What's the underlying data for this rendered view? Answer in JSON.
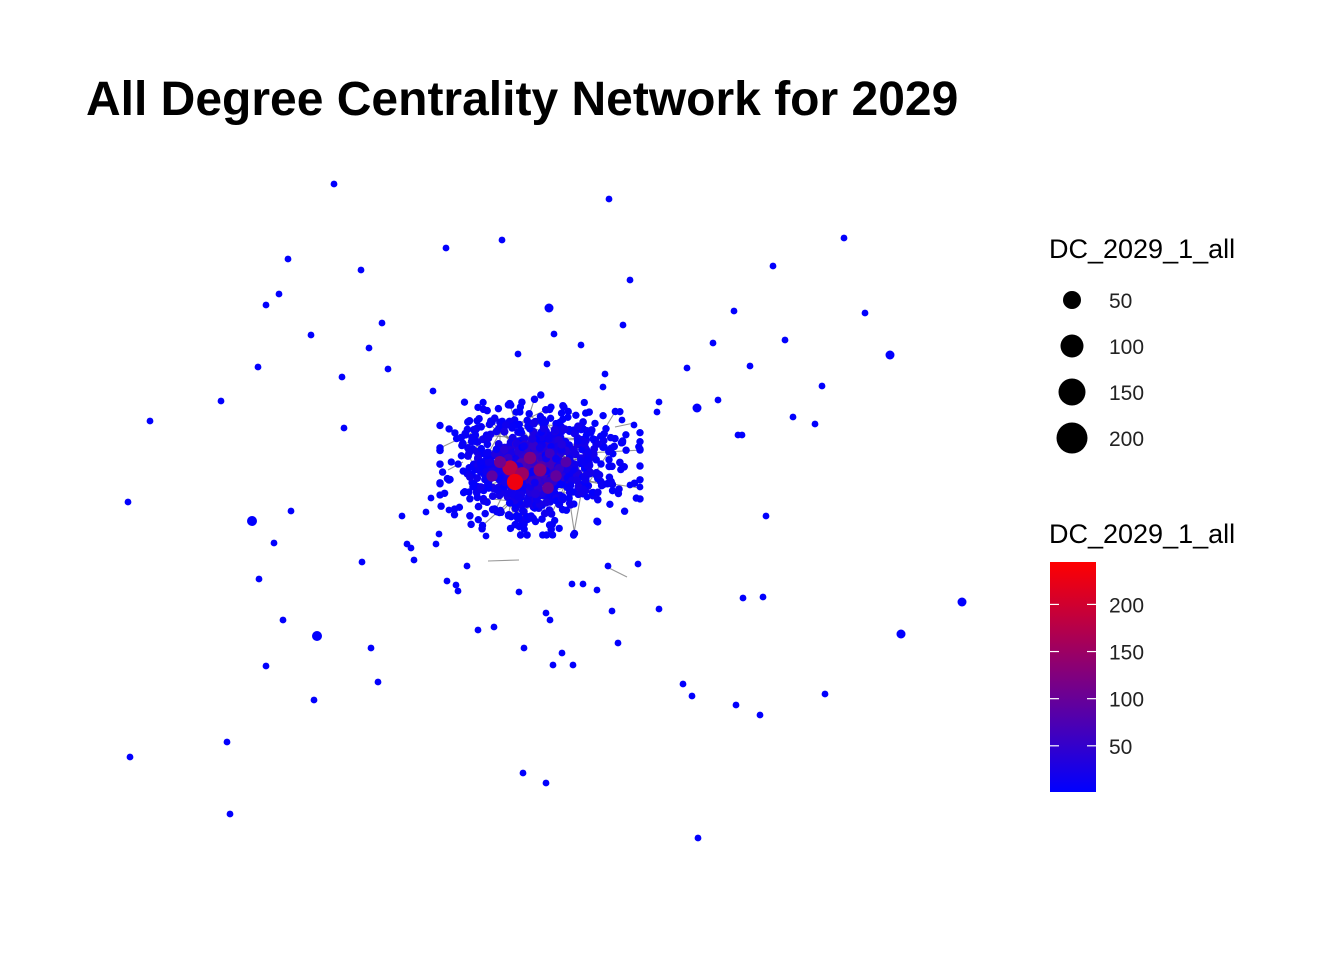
{
  "title": "All Degree Centrality Network for 2029",
  "legend": {
    "size": {
      "title": "DC_2029_1_all",
      "entries": [
        {
          "label": "50",
          "value": 50
        },
        {
          "label": "100",
          "value": 100
        },
        {
          "label": "150",
          "value": 150
        },
        {
          "label": "200",
          "value": 200
        }
      ]
    },
    "color": {
      "title": "DC_2029_1_all",
      "low_color": "#0000ff",
      "high_color": "#ff0000",
      "range": [
        1,
        245
      ],
      "ticks": [
        {
          "label": "200",
          "value": 200
        },
        {
          "label": "150",
          "value": 150
        },
        {
          "label": "100",
          "value": 100
        },
        {
          "label": "50",
          "value": 50
        }
      ]
    }
  },
  "colors": {
    "edge": "#6b6b6b",
    "background": "#ffffff"
  }
}
